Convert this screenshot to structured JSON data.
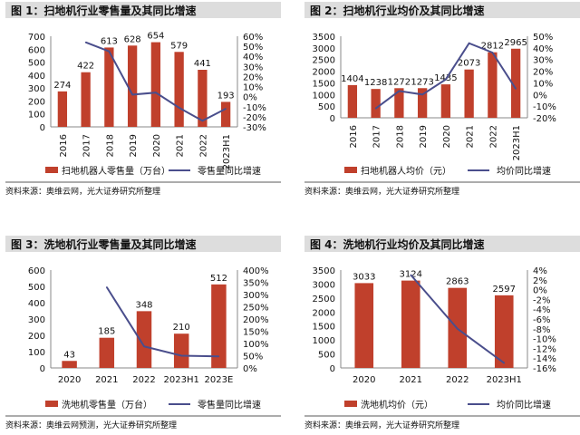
{
  "colors": {
    "bar": "#c0402c",
    "line": "#4a4e8c",
    "title_bg": "#dddddd",
    "axis": "#888888"
  },
  "chart_data": [
    {
      "type": "bar",
      "title": "图 1：扫地机行业零售量及其同比增速",
      "categories": [
        "2016",
        "2017",
        "2018",
        "2019",
        "2020",
        "2021",
        "2022",
        "2023H1"
      ],
      "series": [
        {
          "name": "扫地机器人零售量（万台）",
          "type": "bar",
          "axis": "left",
          "values": [
            274,
            422,
            613,
            628,
            654,
            579,
            441,
            193
          ]
        },
        {
          "name": "零售量同比增速",
          "type": "line",
          "axis": "right",
          "values": [
            null,
            54,
            45,
            2,
            4,
            -11,
            -24,
            -12
          ]
        }
      ],
      "ylim_left": [
        0,
        700
      ],
      "yticks_left": [
        "0",
        "100",
        "200",
        "300",
        "400",
        "500",
        "600",
        "700"
      ],
      "ylim_right": [
        -30,
        60
      ],
      "yticks_right": [
        "-30%",
        "-20%",
        "-10%",
        "0%",
        "10%",
        "20%",
        "30%",
        "40%",
        "50%",
        "60%"
      ],
      "source": "资料来源：奥维云网，光大证券研究所整理"
    },
    {
      "type": "bar",
      "title": "图 2：扫地机行业均价及其同比增速",
      "categories": [
        "2016",
        "2017",
        "2018",
        "2019",
        "2020",
        "2021",
        "2022",
        "2023H1"
      ],
      "series": [
        {
          "name": "扫地机器人均价（元）",
          "type": "bar",
          "axis": "left",
          "values": [
            1404,
            1238,
            1272,
            1273,
            1435,
            2073,
            2812,
            2965
          ]
        },
        {
          "name": "均价同比增速",
          "type": "line",
          "axis": "right",
          "values": [
            null,
            -12,
            3,
            0,
            13,
            44,
            36,
            5
          ]
        }
      ],
      "ylim_left": [
        0,
        3500
      ],
      "yticks_left": [
        "0",
        "500",
        "1000",
        "1500",
        "2000",
        "2500",
        "3000",
        "3500"
      ],
      "ylim_right": [
        -20,
        50
      ],
      "yticks_right": [
        "-20%",
        "-10%",
        "0%",
        "10%",
        "20%",
        "30%",
        "40%",
        "50%"
      ],
      "source": "资料来源：奥维云网，光大证券研究所整理"
    },
    {
      "type": "bar",
      "title": "图 3：洗地机行业零售量及其同比增速",
      "categories": [
        "2020",
        "2021",
        "2022",
        "2023H1",
        "2023E"
      ],
      "series": [
        {
          "name": "洗地机零售量（万台）",
          "type": "bar",
          "axis": "left",
          "values": [
            43,
            185,
            348,
            210,
            512
          ]
        },
        {
          "name": "零售量同比增速",
          "type": "line",
          "axis": "right",
          "values": [
            null,
            330,
            88,
            50,
            47
          ]
        }
      ],
      "ylim_left": [
        0,
        600
      ],
      "yticks_left": [
        "0",
        "100",
        "200",
        "300",
        "400",
        "500",
        "600"
      ],
      "ylim_right": [
        0,
        400
      ],
      "yticks_right": [
        "0%",
        "50%",
        "100%",
        "150%",
        "200%",
        "250%",
        "300%",
        "350%",
        "400%"
      ],
      "source": "资料来源：奥维云网预测，光大证券研究所整理"
    },
    {
      "type": "bar",
      "title": "图 4：洗地机行业均价及其同比增速",
      "categories": [
        "2020",
        "2021",
        "2022",
        "2023H1"
      ],
      "series": [
        {
          "name": "洗地机均价（元）",
          "type": "bar",
          "axis": "left",
          "values": [
            3033,
            3124,
            2863,
            2597
          ]
        },
        {
          "name": "均价同比增速",
          "type": "line",
          "axis": "right",
          "values": [
            null,
            3,
            -8,
            -15
          ]
        }
      ],
      "ylim_left": [
        0,
        3500
      ],
      "yticks_left": [
        "0",
        "500",
        "1000",
        "1500",
        "2000",
        "2500",
        "3000",
        "3500"
      ],
      "ylim_right": [
        -16,
        4
      ],
      "yticks_right": [
        "-16%",
        "-14%",
        "-12%",
        "-10%",
        "-8%",
        "-6%",
        "-4%",
        "-2%",
        "0%",
        "2%",
        "4%"
      ],
      "source": "资料来源：奥维云网，光大证券研究所整理"
    }
  ]
}
